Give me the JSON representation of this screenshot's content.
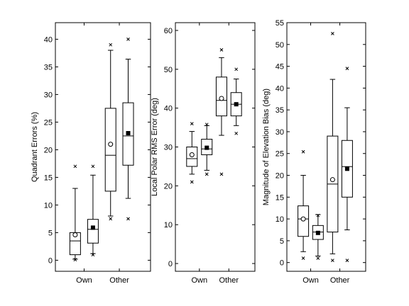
{
  "chart_data": [
    {
      "type": "box",
      "ylabel": "Quadrant Errors (%)",
      "ylim": [
        -2,
        43
      ],
      "yticks": [
        0,
        5,
        10,
        15,
        20,
        25,
        30,
        35,
        40
      ],
      "categories": [
        "Own",
        "Other"
      ],
      "boxes": [
        {
          "group": "Own",
          "marker": "open-circle",
          "whisker_low": 0.2,
          "q1": 1.0,
          "median": 3.5,
          "q3": 5.0,
          "whisker_high": 13.0,
          "mean": 4.6,
          "outliers": [
            0.1,
            17.0
          ]
        },
        {
          "group": "Own",
          "marker": "filled-square",
          "whisker_low": 1.2,
          "q1": 3.1,
          "median": 5.6,
          "q3": 7.4,
          "whisker_high": 15.4,
          "mean": 5.9,
          "outliers": [
            1.0,
            17.0
          ]
        },
        {
          "group": "Other",
          "marker": "open-circle",
          "whisker_low": 8.0,
          "q1": 12.5,
          "median": 19.0,
          "q3": 27.5,
          "whisker_high": 38.0,
          "mean": 21.0,
          "outliers": [
            7.5,
            39.0
          ]
        },
        {
          "group": "Other",
          "marker": "filled-square",
          "whisker_low": 11.2,
          "q1": 17.2,
          "median": 22.5,
          "q3": 28.5,
          "whisker_high": 36.4,
          "mean": 23.0,
          "outliers": [
            7.5,
            40.0
          ]
        }
      ]
    },
    {
      "type": "box",
      "ylabel": "Local Polar RMS Error (deg)",
      "ylim": [
        -2,
        62
      ],
      "yticks": [
        0,
        10,
        20,
        30,
        40,
        50,
        60
      ],
      "categories": [
        "Own",
        "Other"
      ],
      "boxes": [
        {
          "group": "Own",
          "marker": "open-circle",
          "whisker_low": 23.0,
          "q1": 25.0,
          "median": 27.0,
          "q3": 30.0,
          "whisker_high": 34.0,
          "mean": 28.0,
          "outliers": [
            21.0,
            36.0
          ]
        },
        {
          "group": "Own",
          "marker": "filled-square",
          "whisker_low": 24.0,
          "q1": 28.0,
          "median": 29.5,
          "q3": 32.0,
          "whisker_high": 35.5,
          "mean": 29.8,
          "outliers": [
            23.0,
            35.8
          ]
        },
        {
          "group": "Other",
          "marker": "open-circle",
          "whisker_low": 33.0,
          "q1": 38.0,
          "median": 42.0,
          "q3": 48.0,
          "whisker_high": 53.0,
          "mean": 42.5,
          "outliers": [
            23.0,
            55.0
          ]
        },
        {
          "group": "Other",
          "marker": "filled-square",
          "whisker_low": 35.5,
          "q1": 38.0,
          "median": 41.0,
          "q3": 44.0,
          "whisker_high": 47.5,
          "mean": 41.0,
          "outliers": [
            33.5,
            50.0
          ]
        }
      ]
    },
    {
      "type": "box",
      "ylabel": "Magnitude of Elevation Bias (deg)",
      "ylim": [
        -2,
        55
      ],
      "yticks": [
        0,
        5,
        10,
        15,
        20,
        25,
        30,
        35,
        40,
        45,
        50,
        55
      ],
      "categories": [
        "Own",
        "Other"
      ],
      "boxes": [
        {
          "group": "Own",
          "marker": "open-circle",
          "whisker_low": 2.5,
          "q1": 6.0,
          "median": 10.0,
          "q3": 13.0,
          "whisker_high": 20.0,
          "mean": 10.0,
          "outliers": [
            1.0,
            25.4
          ]
        },
        {
          "group": "Own",
          "marker": "filled-square",
          "whisker_low": 1.5,
          "q1": 5.3,
          "median": 7.0,
          "q3": 8.5,
          "whisker_high": 11.0,
          "mean": 6.8,
          "outliers": [
            1.0,
            10.8
          ]
        },
        {
          "group": "Other",
          "marker": "open-circle",
          "whisker_low": 2.0,
          "q1": 7.0,
          "median": 18.0,
          "q3": 29.0,
          "whisker_high": 42.0,
          "mean": 19.0,
          "outliers": [
            0.5,
            52.5
          ]
        },
        {
          "group": "Other",
          "marker": "filled-square",
          "whisker_low": 7.5,
          "q1": 15.0,
          "median": 22.0,
          "q3": 28.0,
          "whisker_high": 35.5,
          "mean": 21.5,
          "outliers": [
            0.5,
            44.5
          ]
        }
      ]
    }
  ]
}
